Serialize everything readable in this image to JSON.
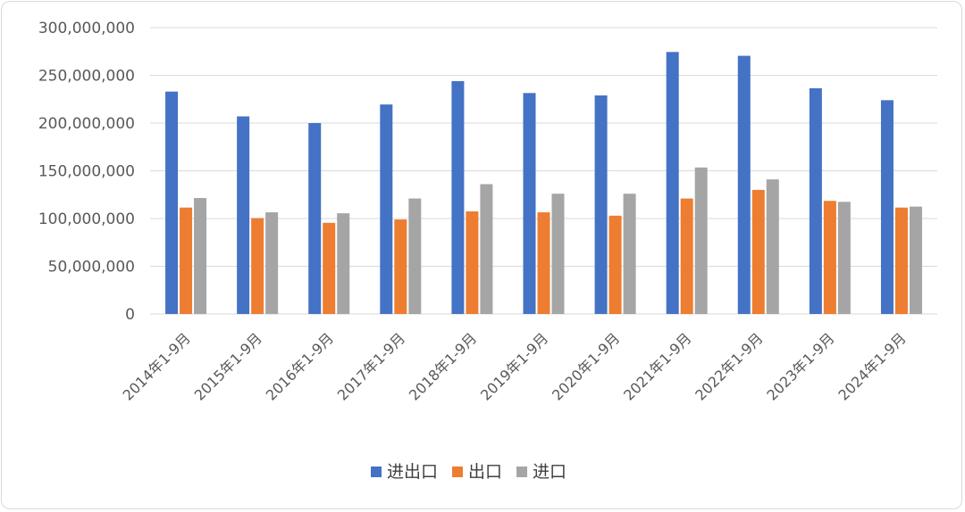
{
  "chart_data": {
    "type": "bar",
    "categories": [
      "2014年1-9月",
      "2015年1-9月",
      "2016年1-9月",
      "2017年1-9月",
      "2018年1-9月",
      "2019年1-9月",
      "2020年1-9月",
      "2021年1-9月",
      "2022年1-9月",
      "2023年1-9月",
      "2024年1-9月"
    ],
    "series": [
      {
        "name": "进出口",
        "color": "#4472C4",
        "values": [
          233000000,
          207000000,
          200000000,
          219500000,
          244000000,
          231500000,
          229000000,
          274500000,
          270500000,
          236500000,
          224000000
        ]
      },
      {
        "name": "出口",
        "color": "#ED7D31",
        "values": [
          111500000,
          100500000,
          95500000,
          99000000,
          107500000,
          106500000,
          103000000,
          121000000,
          130000000,
          118500000,
          111500000
        ]
      },
      {
        "name": "进口",
        "color": "#A5A5A5",
        "values": [
          121500000,
          106500000,
          105500000,
          121000000,
          136000000,
          126000000,
          126000000,
          153500000,
          141000000,
          117500000,
          112500000
        ]
      }
    ],
    "ylim": [
      0,
      300000000
    ],
    "y_ticks": [
      "0",
      "50,000,000",
      "100,000,000",
      "150,000,000",
      "200,000,000",
      "250,000,000",
      "300,000,000"
    ],
    "grid": true,
    "legend_position": "bottom",
    "title": "",
    "xlabel": "",
    "ylabel": "",
    "axis_color": "#d9d9d9"
  }
}
